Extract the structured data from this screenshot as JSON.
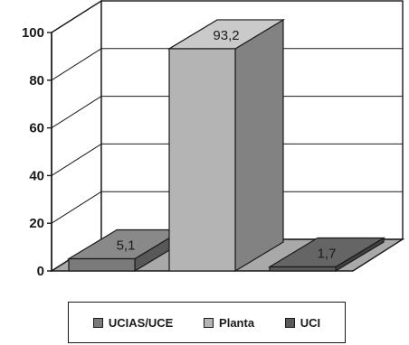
{
  "chart_data": {
    "type": "bar",
    "categories": [
      "UCIAS/UCE",
      "Planta",
      "UCI"
    ],
    "values": [
      5.1,
      93.2,
      1.7
    ],
    "value_labels": [
      "5,1",
      "93,2",
      "1,7"
    ],
    "ylim": [
      0,
      100
    ],
    "yticks": [
      "0",
      "20",
      "40",
      "60",
      "80",
      "100"
    ],
    "grid": true,
    "legend_position": "bottom",
    "colors": [
      "#7a7a7a",
      "#b4b4b4",
      "#5a5a5a"
    ]
  }
}
